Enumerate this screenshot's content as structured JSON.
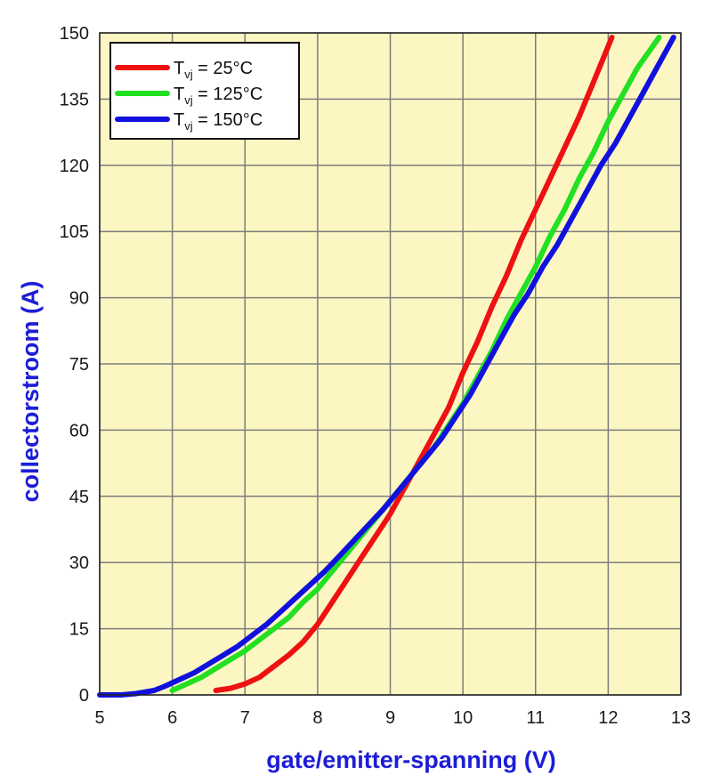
{
  "chart_data": {
    "type": "line",
    "xlabel": "gate/emitter-spanning (V)",
    "ylabel": "collectorstroom (A)",
    "xlim": [
      5,
      13
    ],
    "ylim": [
      0,
      150
    ],
    "xticks": [
      5,
      6,
      7,
      8,
      9,
      10,
      11,
      12,
      13
    ],
    "yticks": [
      0,
      15,
      30,
      45,
      60,
      75,
      90,
      105,
      120,
      135,
      150
    ],
    "grid": true,
    "legend_position": "top-left",
    "plot_background": "#fbf6c2",
    "series": [
      {
        "name_main": "T",
        "name_sub": "vj",
        "name_rest": " = 25°C",
        "color": "#ee1111",
        "points": [
          [
            6.6,
            1
          ],
          [
            6.8,
            1.5
          ],
          [
            7.0,
            2.5
          ],
          [
            7.2,
            4
          ],
          [
            7.4,
            6.5
          ],
          [
            7.6,
            9
          ],
          [
            7.8,
            12
          ],
          [
            8.0,
            16
          ],
          [
            8.2,
            21
          ],
          [
            8.4,
            26
          ],
          [
            8.6,
            31
          ],
          [
            8.8,
            36
          ],
          [
            9.0,
            41
          ],
          [
            9.2,
            47
          ],
          [
            9.4,
            53
          ],
          [
            9.6,
            59
          ],
          [
            9.8,
            65
          ],
          [
            10.0,
            73
          ],
          [
            10.2,
            80
          ],
          [
            10.4,
            88
          ],
          [
            10.6,
            95
          ],
          [
            10.8,
            103
          ],
          [
            11.0,
            110
          ],
          [
            11.2,
            117
          ],
          [
            11.4,
            124
          ],
          [
            11.6,
            131
          ],
          [
            11.8,
            139
          ],
          [
            12.05,
            149
          ]
        ]
      },
      {
        "name_main": "T",
        "name_sub": "vj",
        "name_rest": " = 125°C",
        "color": "#22e022",
        "points": [
          [
            6.0,
            1
          ],
          [
            6.2,
            2.5
          ],
          [
            6.4,
            4
          ],
          [
            6.6,
            6
          ],
          [
            6.8,
            8
          ],
          [
            7.0,
            10
          ],
          [
            7.2,
            12.5
          ],
          [
            7.4,
            15
          ],
          [
            7.6,
            17.5
          ],
          [
            7.8,
            21
          ],
          [
            8.0,
            24
          ],
          [
            8.2,
            28
          ],
          [
            8.4,
            32
          ],
          [
            8.6,
            36
          ],
          [
            8.8,
            40
          ],
          [
            9.0,
            44
          ],
          [
            9.2,
            48
          ],
          [
            9.4,
            52
          ],
          [
            9.6,
            56
          ],
          [
            9.8,
            61
          ],
          [
            10.0,
            66
          ],
          [
            10.2,
            72
          ],
          [
            10.4,
            78
          ],
          [
            10.6,
            85
          ],
          [
            10.8,
            91
          ],
          [
            11.0,
            97
          ],
          [
            11.2,
            104
          ],
          [
            11.4,
            110
          ],
          [
            11.6,
            117
          ],
          [
            11.8,
            123
          ],
          [
            12.0,
            130
          ],
          [
            12.2,
            136
          ],
          [
            12.4,
            142
          ],
          [
            12.7,
            149
          ]
        ]
      },
      {
        "name_main": "T",
        "name_sub": "vj",
        "name_rest": " = 150°C",
        "color": "#1111dd",
        "points": [
          [
            5.0,
            0
          ],
          [
            5.3,
            0
          ],
          [
            5.5,
            0.3
          ],
          [
            5.75,
            1
          ],
          [
            5.9,
            2
          ],
          [
            6.1,
            3.5
          ],
          [
            6.3,
            5
          ],
          [
            6.5,
            7
          ],
          [
            6.7,
            9
          ],
          [
            6.9,
            11
          ],
          [
            7.1,
            13.5
          ],
          [
            7.3,
            16
          ],
          [
            7.5,
            19
          ],
          [
            7.7,
            22
          ],
          [
            7.9,
            25
          ],
          [
            8.1,
            28
          ],
          [
            8.3,
            31.5
          ],
          [
            8.5,
            35
          ],
          [
            8.7,
            38.5
          ],
          [
            8.9,
            42
          ],
          [
            9.1,
            46
          ],
          [
            9.3,
            50
          ],
          [
            9.5,
            54
          ],
          [
            9.7,
            58
          ],
          [
            9.9,
            63
          ],
          [
            10.1,
            68
          ],
          [
            10.3,
            74
          ],
          [
            10.5,
            80
          ],
          [
            10.7,
            86
          ],
          [
            10.9,
            91
          ],
          [
            11.1,
            97
          ],
          [
            11.3,
            102
          ],
          [
            11.5,
            108
          ],
          [
            11.7,
            114
          ],
          [
            11.9,
            120
          ],
          [
            12.1,
            125
          ],
          [
            12.3,
            131
          ],
          [
            12.5,
            137
          ],
          [
            12.7,
            143
          ],
          [
            12.9,
            149
          ]
        ]
      }
    ]
  }
}
